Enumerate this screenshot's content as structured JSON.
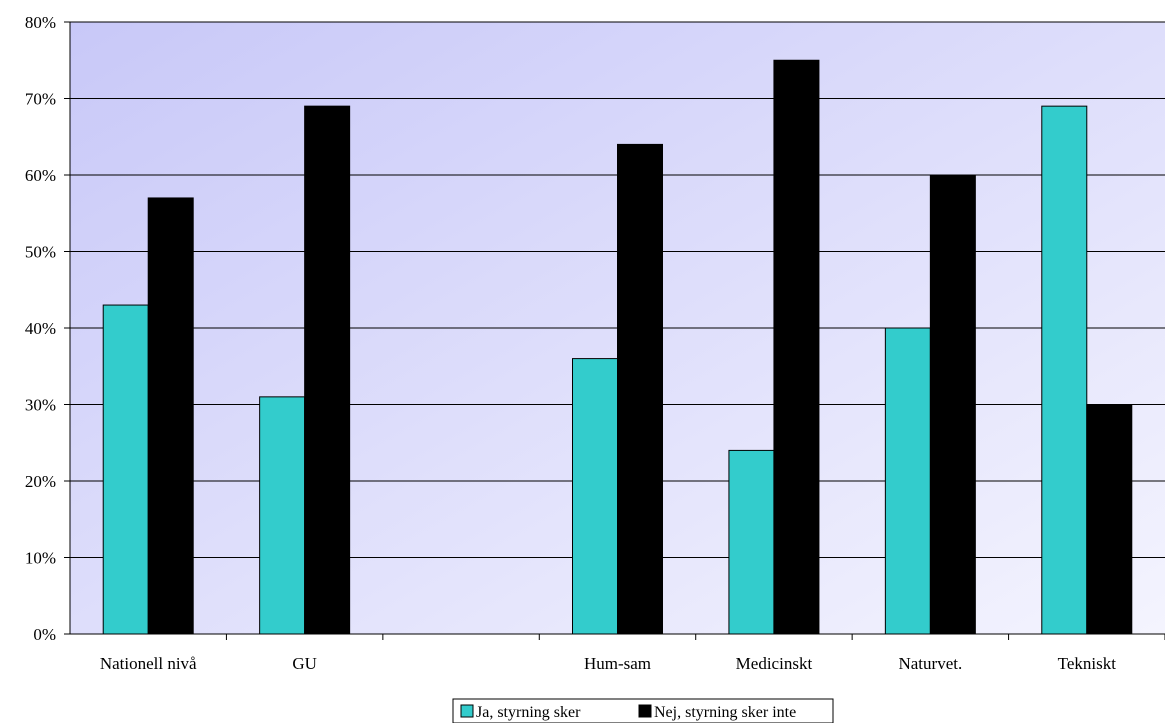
{
  "chart_data": {
    "type": "bar",
    "categories": [
      "Nationell nivå",
      "GU",
      "",
      "Hum-sam",
      "Medicinskt",
      "Naturvet.",
      "Tekniskt"
    ],
    "series": [
      {
        "name": "Ja, styrning sker",
        "color": "#33cccc",
        "values": [
          43,
          31,
          null,
          36,
          24,
          40,
          69
        ]
      },
      {
        "name": "Nej, styrning sker inte",
        "color": "#000000",
        "values": [
          57,
          69,
          null,
          64,
          75,
          60,
          30
        ]
      }
    ],
    "y_ticks": [
      "0%",
      "10%",
      "20%",
      "30%",
      "40%",
      "50%",
      "60%",
      "70%",
      "80%"
    ],
    "ylim": [
      0,
      80
    ],
    "grid": true,
    "legend_position": "bottom",
    "background_gradient": [
      "#c8c8f8",
      "#f4f4fe"
    ]
  }
}
